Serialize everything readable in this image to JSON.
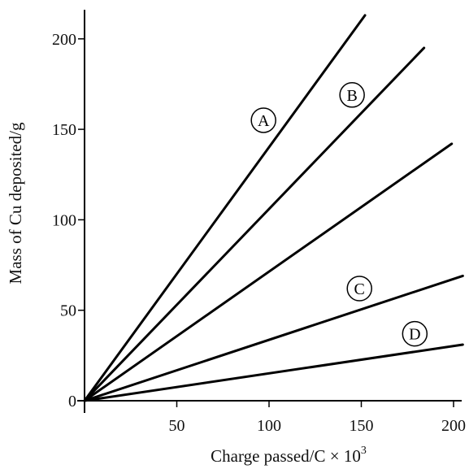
{
  "chart_data": {
    "type": "line",
    "title": "",
    "xlabel": "Charge passed/C × 10",
    "xlabel_superscript": "3",
    "ylabel": "Mass of Cu deposited/g",
    "xlim": [
      0,
      210
    ],
    "ylim": [
      0,
      215
    ],
    "xticks": [
      50,
      100,
      150,
      200
    ],
    "yticks": [
      0,
      50,
      100,
      150,
      200
    ],
    "grid": false,
    "series": [
      {
        "name": "A",
        "points": [
          [
            0,
            0
          ],
          [
            152,
            213
          ]
        ],
        "label_at": [
          97,
          155
        ]
      },
      {
        "name": "B",
        "points": [
          [
            0,
            0
          ],
          [
            184,
            195
          ]
        ],
        "label_at": [
          145,
          169
        ]
      },
      {
        "name": "",
        "points": [
          [
            0,
            0
          ],
          [
            199,
            142
          ]
        ]
      },
      {
        "name": "C",
        "points": [
          [
            0,
            0
          ],
          [
            205,
            69
          ]
        ],
        "label_at": [
          149,
          62
        ]
      },
      {
        "name": "D",
        "points": [
          [
            0,
            0
          ],
          [
            205,
            31
          ]
        ],
        "label_at": [
          179,
          37
        ]
      }
    ]
  }
}
